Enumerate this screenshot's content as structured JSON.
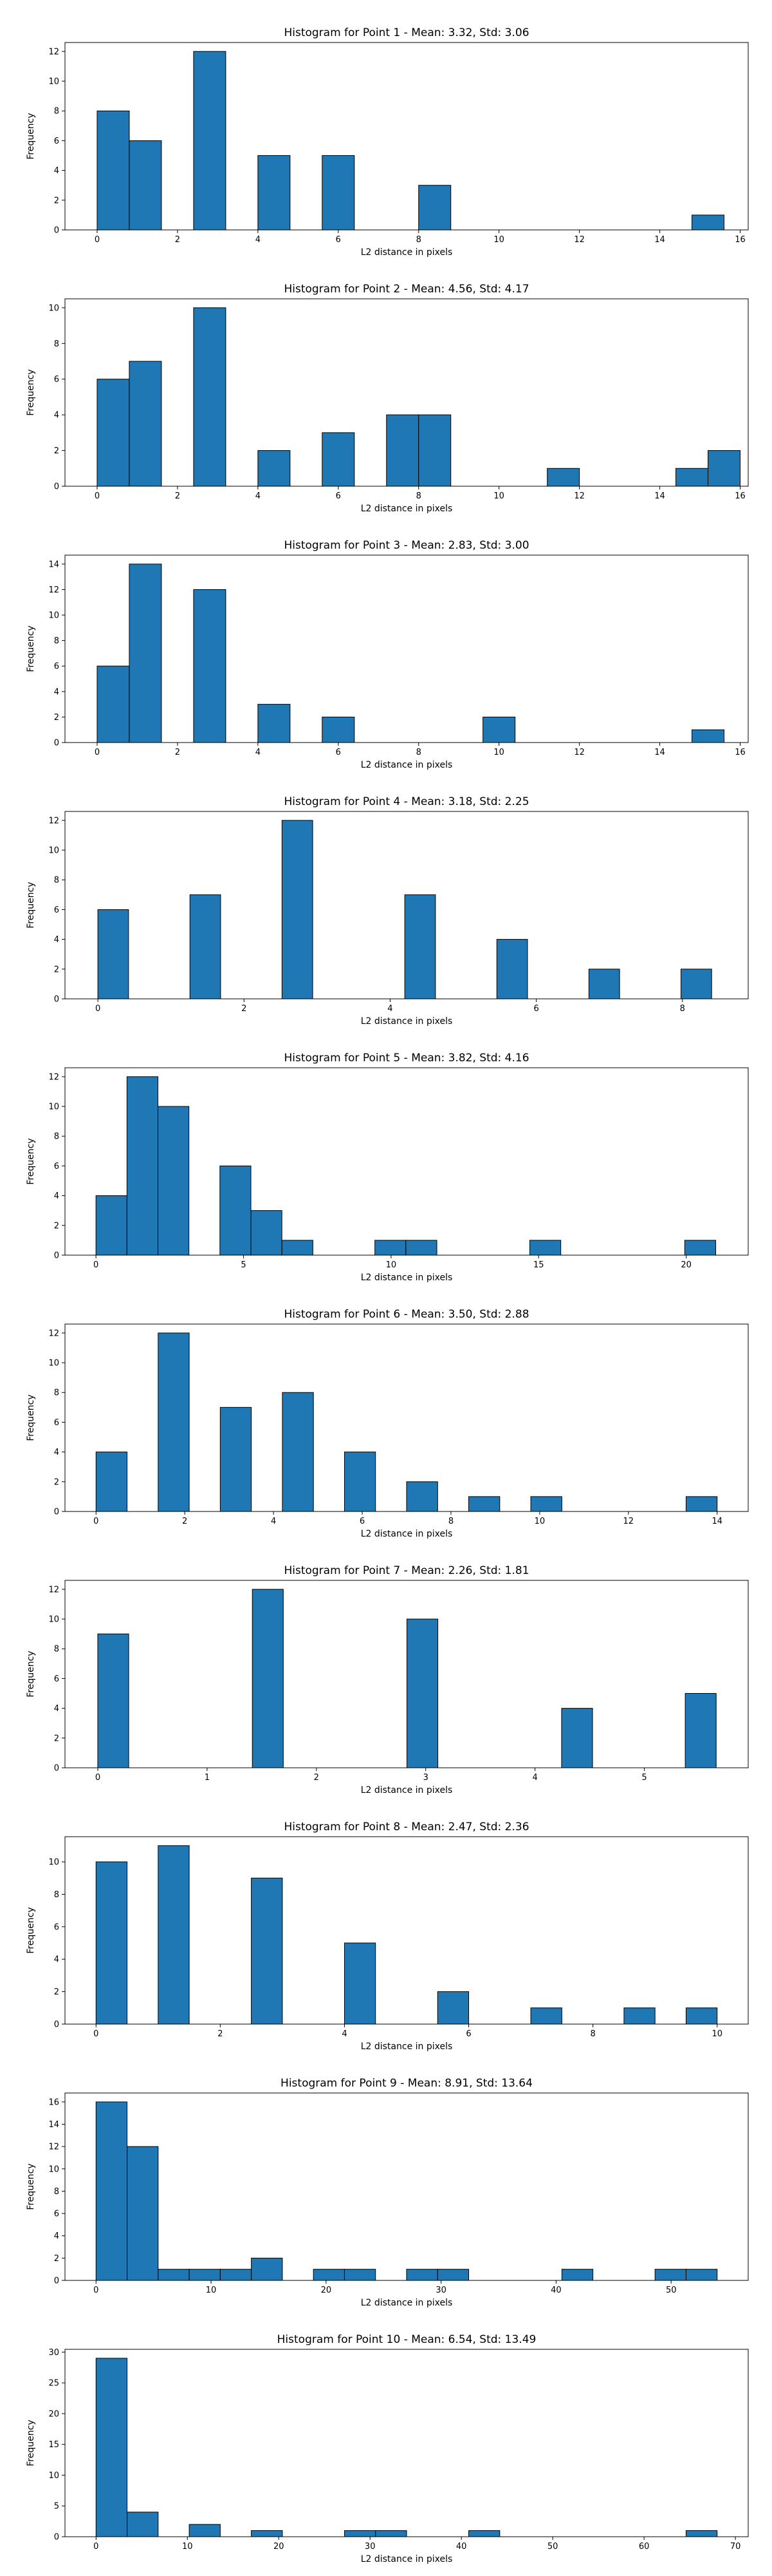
{
  "chart_data": [
    {
      "type": "bar",
      "title": "Histogram for Point 1 - Mean: 3.32, Std: 3.06",
      "xlabel": "L2 distance in pixels",
      "ylabel": "Frequency",
      "xlim": [
        -0.8,
        16.2
      ],
      "ylim": [
        0,
        12.6
      ],
      "xticks": [
        0,
        2,
        4,
        6,
        8,
        10,
        12,
        14,
        16
      ],
      "yticks": [
        0,
        2,
        4,
        6,
        8,
        10,
        12
      ],
      "bins": [
        {
          "x0": 0.0,
          "x1": 0.8,
          "count": 8
        },
        {
          "x0": 0.8,
          "x1": 1.6,
          "count": 6
        },
        {
          "x0": 2.4,
          "x1": 3.2,
          "count": 12
        },
        {
          "x0": 4.0,
          "x1": 4.8,
          "count": 5
        },
        {
          "x0": 5.6,
          "x1": 6.4,
          "count": 5
        },
        {
          "x0": 8.0,
          "x1": 8.8,
          "count": 3
        },
        {
          "x0": 14.8,
          "x1": 15.6,
          "count": 1
        }
      ]
    },
    {
      "type": "bar",
      "title": "Histogram for Point 2 - Mean: 4.56, Std: 4.17",
      "xlabel": "L2 distance in pixels",
      "ylabel": "Frequency",
      "xlim": [
        -0.8,
        16.2
      ],
      "ylim": [
        0,
        10.5
      ],
      "xticks": [
        0,
        2,
        4,
        6,
        8,
        10,
        12,
        14,
        16
      ],
      "yticks": [
        0,
        2,
        4,
        6,
        8,
        10
      ],
      "bins": [
        {
          "x0": 0.0,
          "x1": 0.8,
          "count": 6
        },
        {
          "x0": 0.8,
          "x1": 1.6,
          "count": 7
        },
        {
          "x0": 2.4,
          "x1": 3.2,
          "count": 10
        },
        {
          "x0": 4.0,
          "x1": 4.8,
          "count": 2
        },
        {
          "x0": 5.6,
          "x1": 6.4,
          "count": 3
        },
        {
          "x0": 7.2,
          "x1": 8.0,
          "count": 4
        },
        {
          "x0": 8.0,
          "x1": 8.8,
          "count": 4
        },
        {
          "x0": 11.2,
          "x1": 12.0,
          "count": 1
        },
        {
          "x0": 14.4,
          "x1": 15.2,
          "count": 1
        },
        {
          "x0": 15.2,
          "x1": 16.0,
          "count": 2
        }
      ]
    },
    {
      "type": "bar",
      "title": "Histogram for Point 3 - Mean: 2.83, Std: 3.00",
      "xlabel": "L2 distance in pixels",
      "ylabel": "Frequency",
      "xlim": [
        -0.8,
        16.2
      ],
      "ylim": [
        0,
        14.7
      ],
      "xticks": [
        0,
        2,
        4,
        6,
        8,
        10,
        12,
        14,
        16
      ],
      "yticks": [
        0,
        2,
        4,
        6,
        8,
        10,
        12,
        14
      ],
      "bins": [
        {
          "x0": 0.0,
          "x1": 0.8,
          "count": 6
        },
        {
          "x0": 0.8,
          "x1": 1.6,
          "count": 14
        },
        {
          "x0": 2.4,
          "x1": 3.2,
          "count": 12
        },
        {
          "x0": 4.0,
          "x1": 4.8,
          "count": 3
        },
        {
          "x0": 5.6,
          "x1": 6.4,
          "count": 2
        },
        {
          "x0": 9.6,
          "x1": 10.4,
          "count": 2
        },
        {
          "x0": 14.8,
          "x1": 15.6,
          "count": 1
        }
      ]
    },
    {
      "type": "bar",
      "title": "Histogram for Point 4 - Mean: 3.18, Std: 2.25",
      "xlabel": "L2 distance in pixels",
      "ylabel": "Frequency",
      "xlim": [
        -0.45,
        8.9
      ],
      "ylim": [
        0,
        12.6
      ],
      "xticks": [
        0,
        2,
        4,
        6,
        8
      ],
      "yticks": [
        0,
        2,
        4,
        6,
        8,
        10,
        12
      ],
      "bins": [
        {
          "x0": 0.0,
          "x1": 0.42,
          "count": 6
        },
        {
          "x0": 1.26,
          "x1": 1.68,
          "count": 7
        },
        {
          "x0": 2.52,
          "x1": 2.94,
          "count": 12
        },
        {
          "x0": 4.2,
          "x1": 4.62,
          "count": 7
        },
        {
          "x0": 5.46,
          "x1": 5.88,
          "count": 4
        },
        {
          "x0": 6.72,
          "x1": 7.14,
          "count": 2
        },
        {
          "x0": 7.98,
          "x1": 8.4,
          "count": 2
        }
      ]
    },
    {
      "type": "bar",
      "title": "Histogram for Point 5 - Mean: 3.82, Std: 4.16",
      "xlabel": "L2 distance in pixels",
      "ylabel": "Frequency",
      "xlim": [
        -1.05,
        22.1
      ],
      "ylim": [
        0,
        12.6
      ],
      "xticks": [
        0,
        5,
        10,
        15,
        20
      ],
      "yticks": [
        0,
        2,
        4,
        6,
        8,
        10,
        12
      ],
      "bins": [
        {
          "x0": 0.0,
          "x1": 1.05,
          "count": 4
        },
        {
          "x0": 1.05,
          "x1": 2.1,
          "count": 12
        },
        {
          "x0": 2.1,
          "x1": 3.15,
          "count": 10
        },
        {
          "x0": 4.2,
          "x1": 5.25,
          "count": 6
        },
        {
          "x0": 5.25,
          "x1": 6.3,
          "count": 3
        },
        {
          "x0": 6.3,
          "x1": 7.35,
          "count": 1
        },
        {
          "x0": 9.45,
          "x1": 10.5,
          "count": 1
        },
        {
          "x0": 10.5,
          "x1": 11.55,
          "count": 1
        },
        {
          "x0": 14.7,
          "x1": 15.75,
          "count": 1
        },
        {
          "x0": 19.95,
          "x1": 21.0,
          "count": 1
        }
      ]
    },
    {
      "type": "bar",
      "title": "Histogram for Point 6 - Mean: 3.50, Std: 2.88",
      "xlabel": "L2 distance in pixels",
      "ylabel": "Frequency",
      "xlim": [
        -0.7,
        14.7
      ],
      "ylim": [
        0,
        12.6
      ],
      "xticks": [
        0,
        2,
        4,
        6,
        8,
        10,
        12,
        14
      ],
      "yticks": [
        0,
        2,
        4,
        6,
        8,
        10,
        12
      ],
      "bins": [
        {
          "x0": 0.0,
          "x1": 0.7,
          "count": 4
        },
        {
          "x0": 1.4,
          "x1": 2.1,
          "count": 12
        },
        {
          "x0": 2.8,
          "x1": 3.5,
          "count": 7
        },
        {
          "x0": 4.2,
          "x1": 4.9,
          "count": 8
        },
        {
          "x0": 5.6,
          "x1": 6.3,
          "count": 4
        },
        {
          "x0": 7.0,
          "x1": 7.7,
          "count": 2
        },
        {
          "x0": 8.4,
          "x1": 9.1,
          "count": 1
        },
        {
          "x0": 9.8,
          "x1": 10.5,
          "count": 1
        },
        {
          "x0": 13.3,
          "x1": 14.0,
          "count": 1
        }
      ]
    },
    {
      "type": "bar",
      "title": "Histogram for Point 7 - Mean: 2.26, Std: 1.81",
      "xlabel": "L2 distance in pixels",
      "ylabel": "Frequency",
      "xlim": [
        -0.3,
        5.95
      ],
      "ylim": [
        0,
        12.6
      ],
      "xticks": [
        0,
        1,
        2,
        3,
        4,
        5
      ],
      "yticks": [
        0,
        2,
        4,
        6,
        8,
        10,
        12
      ],
      "bins": [
        {
          "x0": 0.0,
          "x1": 0.283,
          "count": 9
        },
        {
          "x0": 1.414,
          "x1": 1.697,
          "count": 12
        },
        {
          "x0": 2.828,
          "x1": 3.111,
          "count": 10
        },
        {
          "x0": 4.243,
          "x1": 4.526,
          "count": 4
        },
        {
          "x0": 5.374,
          "x1": 5.657,
          "count": 5
        }
      ]
    },
    {
      "type": "bar",
      "title": "Histogram for Point 8 - Mean: 2.47, Std: 2.36",
      "xlabel": "L2 distance in pixels",
      "ylabel": "Frequency",
      "xlim": [
        -0.5,
        10.5
      ],
      "ylim": [
        0,
        11.55
      ],
      "xticks": [
        0,
        2,
        4,
        6,
        8,
        10
      ],
      "yticks": [
        0,
        2,
        4,
        6,
        8,
        10
      ],
      "bins": [
        {
          "x0": 0.0,
          "x1": 0.5,
          "count": 10
        },
        {
          "x0": 1.0,
          "x1": 1.5,
          "count": 11
        },
        {
          "x0": 2.5,
          "x1": 3.0,
          "count": 9
        },
        {
          "x0": 4.0,
          "x1": 4.5,
          "count": 5
        },
        {
          "x0": 5.5,
          "x1": 6.0,
          "count": 2
        },
        {
          "x0": 7.0,
          "x1": 7.5,
          "count": 1
        },
        {
          "x0": 8.5,
          "x1": 9.0,
          "count": 1
        },
        {
          "x0": 9.5,
          "x1": 10.0,
          "count": 1
        }
      ]
    },
    {
      "type": "bar",
      "title": "Histogram for Point 9 - Mean: 8.91, Std: 13.64",
      "xlabel": "L2 distance in pixels",
      "ylabel": "Frequency",
      "xlim": [
        -2.7,
        56.7
      ],
      "ylim": [
        0,
        16.8
      ],
      "xticks": [
        0,
        10,
        20,
        30,
        40,
        50
      ],
      "yticks": [
        0,
        2,
        4,
        6,
        8,
        10,
        12,
        14,
        16
      ],
      "bins": [
        {
          "x0": 0.0,
          "x1": 2.7,
          "count": 16
        },
        {
          "x0": 2.7,
          "x1": 5.4,
          "count": 12
        },
        {
          "x0": 5.4,
          "x1": 8.1,
          "count": 1
        },
        {
          "x0": 8.1,
          "x1": 10.8,
          "count": 1
        },
        {
          "x0": 10.8,
          "x1": 13.5,
          "count": 1
        },
        {
          "x0": 13.5,
          "x1": 16.2,
          "count": 2
        },
        {
          "x0": 18.9,
          "x1": 21.6,
          "count": 1
        },
        {
          "x0": 21.6,
          "x1": 24.3,
          "count": 1
        },
        {
          "x0": 27.0,
          "x1": 29.7,
          "count": 1
        },
        {
          "x0": 29.7,
          "x1": 32.4,
          "count": 1
        },
        {
          "x0": 40.5,
          "x1": 43.2,
          "count": 1
        },
        {
          "x0": 48.6,
          "x1": 51.3,
          "count": 1
        },
        {
          "x0": 51.3,
          "x1": 54.0,
          "count": 1
        }
      ]
    },
    {
      "type": "bar",
      "title": "Histogram for Point 10 - Mean: 6.54, Std: 13.49",
      "xlabel": "L2 distance in pixels",
      "ylabel": "Frequency",
      "xlim": [
        -3.4,
        71.4
      ],
      "ylim": [
        0,
        30.45
      ],
      "xticks": [
        0,
        10,
        20,
        30,
        40,
        50,
        60,
        70
      ],
      "yticks": [
        0,
        5,
        10,
        15,
        20,
        25,
        30
      ],
      "bins": [
        {
          "x0": 0.0,
          "x1": 3.4,
          "count": 29
        },
        {
          "x0": 3.4,
          "x1": 6.8,
          "count": 4
        },
        {
          "x0": 10.2,
          "x1": 13.6,
          "count": 2
        },
        {
          "x0": 17.0,
          "x1": 20.4,
          "count": 1
        },
        {
          "x0": 27.2,
          "x1": 30.6,
          "count": 1
        },
        {
          "x0": 30.6,
          "x1": 34.0,
          "count": 1
        },
        {
          "x0": 40.8,
          "x1": 44.2,
          "count": 1
        },
        {
          "x0": 64.6,
          "x1": 68.0,
          "count": 1
        }
      ]
    }
  ],
  "colors": {
    "bar_fill": "#1f77b4",
    "bar_edge": "#000000",
    "axis": "#000000",
    "background": "#ffffff"
  }
}
